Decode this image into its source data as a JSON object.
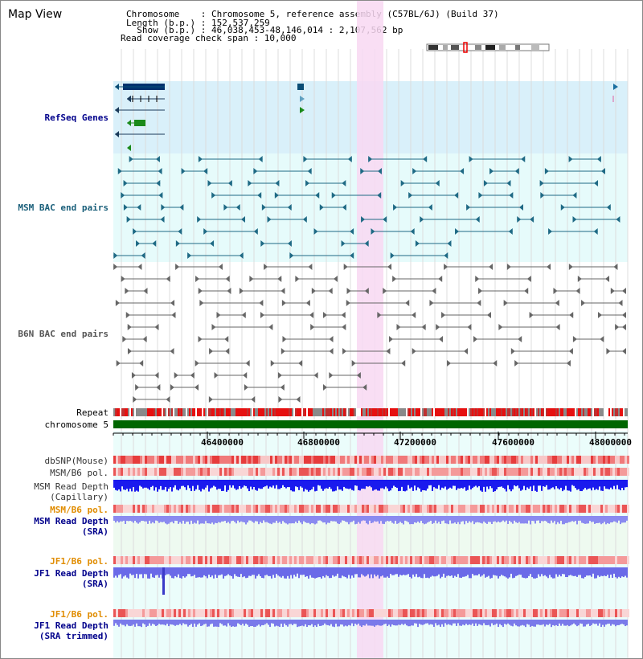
{
  "view_title": "Map View",
  "info": {
    "chromosome_line": "Chromosome    : Chromosome 5, reference assembly (C57BL/6J) (Build 37)",
    "length_line": "Length (b.p.) : 152,537,259",
    "show_line": "  Show (b.p.) : 46,038,453-48,146,014 : 2,107,562 bp",
    "coverage_line": "Read coverage check span : 10,000"
  },
  "tracks": {
    "refseq": {
      "label": "RefSeq Genes",
      "color": "#00008b"
    },
    "msm_bac": {
      "label": "MSM BAC end pairs",
      "color": "#1a5f7a"
    },
    "b6n_bac": {
      "label": "B6N BAC end pairs",
      "color": "#555555"
    },
    "repeat": {
      "label": "Repeat",
      "color": "#000000"
    },
    "chromosome": {
      "label": "chromosome 5",
      "color": "#000000"
    },
    "dbsnp": {
      "label": "dbSNP(Mouse)",
      "color": "#333333"
    },
    "msm_b6_pol": {
      "label": "MSM/B6 pol.",
      "color": "#333333"
    },
    "msm_read_depth_cap": {
      "label": "MSM Read Depth",
      "label2": "(Capillary)",
      "color": "#333333"
    },
    "msm_b6_pol_2": {
      "label": "MSM/B6 pol.",
      "color": "#e08c00"
    },
    "msm_read_depth_sra": {
      "label": "MSM Read Depth",
      "label2": "(SRA)",
      "color": "#00008b"
    },
    "jf1_b6_pol": {
      "label": "JF1/B6 pol.",
      "color": "#e08c00"
    },
    "jf1_read_depth_sra": {
      "label": "JF1 Read Depth",
      "label2": "(SRA)",
      "color": "#00008b"
    },
    "jf1_b6_pol_2": {
      "label": "JF1/B6 pol.",
      "color": "#e08c00"
    },
    "jf1_read_depth_trim": {
      "label": "JF1 Read Depth",
      "label2": "(SRA trimmed)",
      "color": "#00008b"
    }
  },
  "axis_positions": [
    "46400000",
    "46800000",
    "47200000",
    "47600000",
    "48000000"
  ],
  "colors": {
    "refseq_bg": "#d9f0fa",
    "bac_bg": "#e6fbfb",
    "highlight": "#f8d8f2",
    "chrom_bar": "#006600",
    "gene_dark": "#00326e",
    "gene_green": "#1a8a1a",
    "msm_line": "#1f6a85",
    "b6n_line": "#666666"
  }
}
